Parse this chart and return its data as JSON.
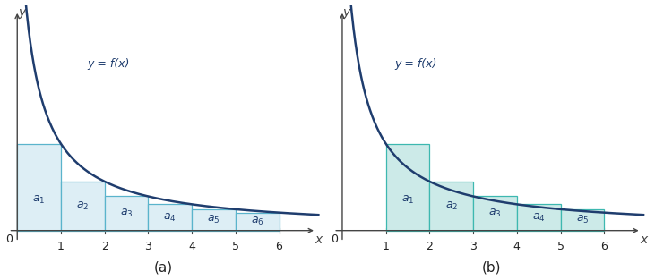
{
  "func_decay": 0.3,
  "func_scale": 1.0,
  "xlim_a": [
    -0.25,
    7.0
  ],
  "xlim_b": [
    -0.25,
    7.0
  ],
  "ylim": [
    -0.12,
    2.0
  ],
  "x_ticks": [
    1,
    2,
    3,
    4,
    5,
    6
  ],
  "curve_color": "#1f3d6e",
  "rect_fill_a": "#ddeef5",
  "rect_edge_a": "#5ab4cc",
  "rect_fill_b": "#cceae8",
  "rect_edge_b": "#3db8b0",
  "label_color": "#1f3d6e",
  "func_label": "y = f(x)",
  "subplot_a_label": "(a)",
  "subplot_b_label": "(b)",
  "axis_color": "#444444",
  "tick_color": "#222222",
  "background": "#ffffff",
  "area_labels_a": [
    "$a_1$",
    "$a_2$",
    "$a_3$",
    "$a_4$",
    "$a_5$",
    "$a_6$"
  ],
  "area_labels_b": [
    "$a_1$",
    "$a_2$",
    "$a_3$",
    "$a_4$",
    "$a_5$"
  ]
}
